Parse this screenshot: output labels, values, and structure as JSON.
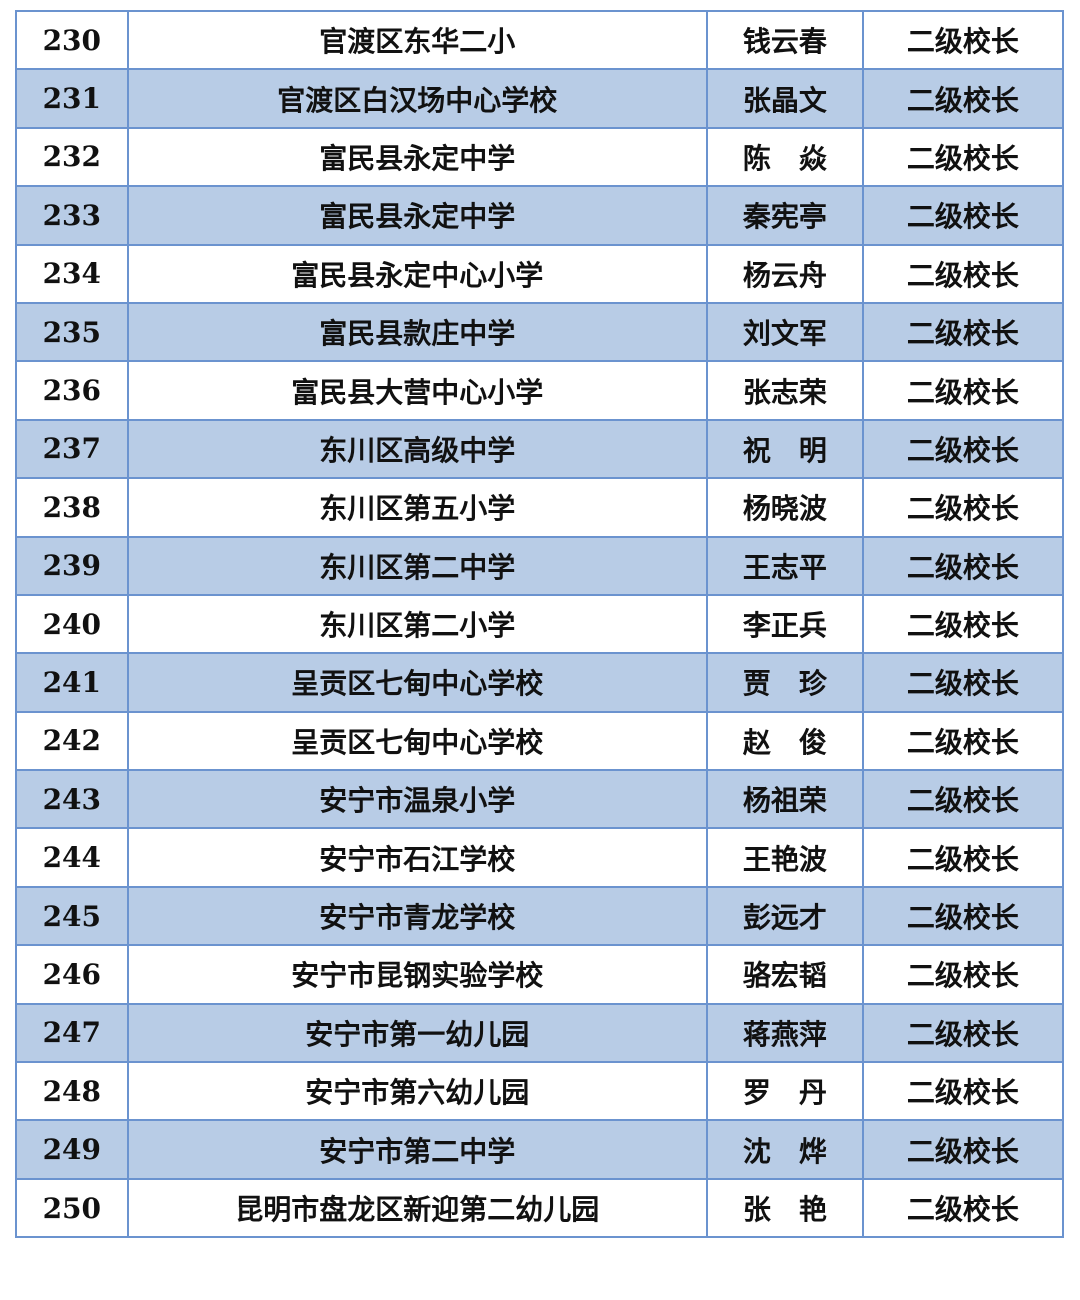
{
  "colors": {
    "border": "#6b93cf",
    "stripe": "#b8cce6"
  },
  "rows": [
    {
      "no": "230",
      "school": "官渡区东华二小",
      "name": "钱云春",
      "title": "二级校长"
    },
    {
      "no": "231",
      "school": "官渡区白汉场中心学校",
      "name": "张晶文",
      "title": "二级校长"
    },
    {
      "no": "232",
      "school": "富民县永定中学",
      "name": "陈　焱",
      "title": "二级校长"
    },
    {
      "no": "233",
      "school": "富民县永定中学",
      "name": "秦宪亭",
      "title": "二级校长"
    },
    {
      "no": "234",
      "school": "富民县永定中心小学",
      "name": "杨云舟",
      "title": "二级校长"
    },
    {
      "no": "235",
      "school": "富民县款庄中学",
      "name": "刘文军",
      "title": "二级校长"
    },
    {
      "no": "236",
      "school": "富民县大营中心小学",
      "name": "张志荣",
      "title": "二级校长"
    },
    {
      "no": "237",
      "school": "东川区高级中学",
      "name": "祝　明",
      "title": "二级校长"
    },
    {
      "no": "238",
      "school": "东川区第五小学",
      "name": "杨晓波",
      "title": "二级校长"
    },
    {
      "no": "239",
      "school": "东川区第二中学",
      "name": "王志平",
      "title": "二级校长"
    },
    {
      "no": "240",
      "school": "东川区第二小学",
      "name": "李正兵",
      "title": "二级校长"
    },
    {
      "no": "241",
      "school": "呈贡区七甸中心学校",
      "name": "贾　珍",
      "title": "二级校长"
    },
    {
      "no": "242",
      "school": "呈贡区七甸中心学校",
      "name": "赵　俊",
      "title": "二级校长"
    },
    {
      "no": "243",
      "school": "安宁市温泉小学",
      "name": "杨祖荣",
      "title": "二级校长"
    },
    {
      "no": "244",
      "school": "安宁市石江学校",
      "name": "王艳波",
      "title": "二级校长"
    },
    {
      "no": "245",
      "school": "安宁市青龙学校",
      "name": "彭远才",
      "title": "二级校长"
    },
    {
      "no": "246",
      "school": "安宁市昆钢实验学校",
      "name": "骆宏韬",
      "title": "二级校长"
    },
    {
      "no": "247",
      "school": "安宁市第一幼儿园",
      "name": "蒋燕萍",
      "title": "二级校长"
    },
    {
      "no": "248",
      "school": "安宁市第六幼儿园",
      "name": "罗　丹",
      "title": "二级校长"
    },
    {
      "no": "249",
      "school": "安宁市第二中学",
      "name": "沈　烨",
      "title": "二级校长"
    },
    {
      "no": "250",
      "school": "昆明市盘龙区新迎第二幼儿园",
      "name": "张　艳",
      "title": "二级校长"
    }
  ]
}
